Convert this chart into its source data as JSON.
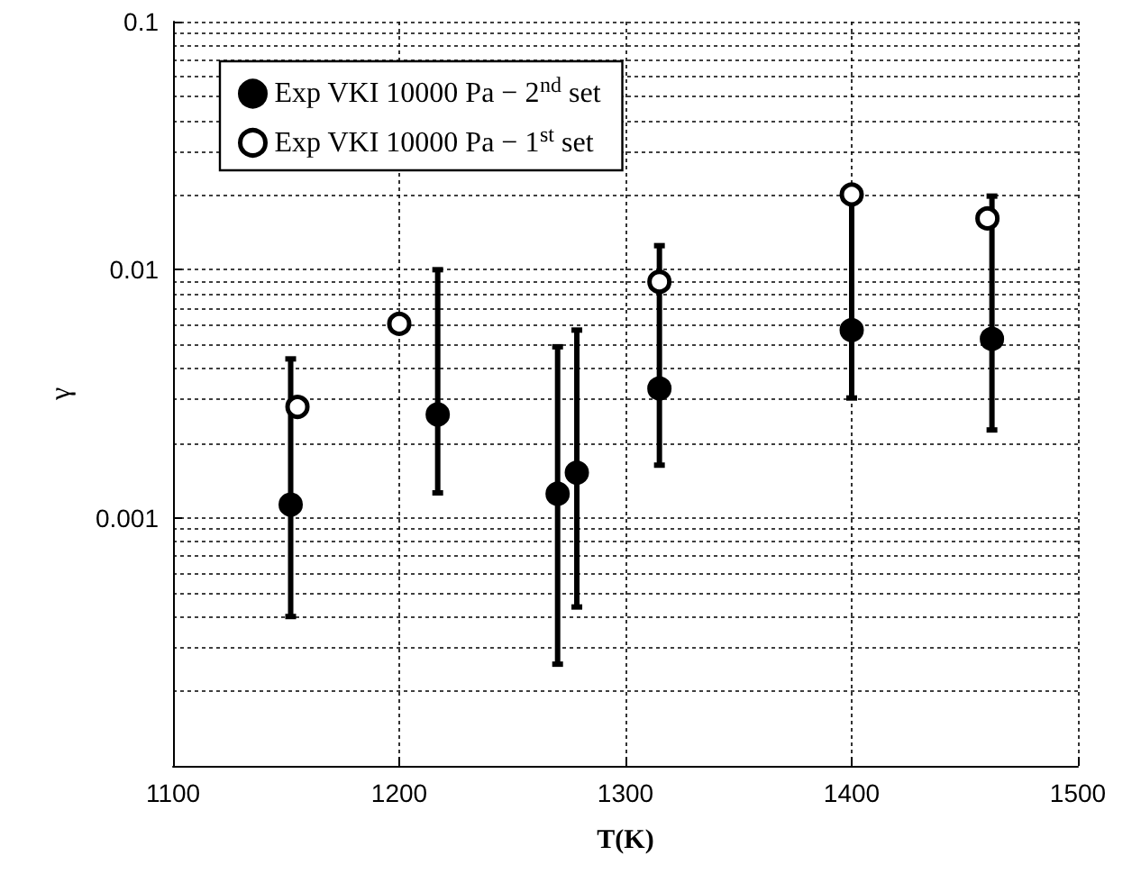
{
  "chart_data": {
    "type": "scatter",
    "xlabel": "T(K)",
    "ylabel": "γ",
    "log": "y",
    "grid": true,
    "legend": "top left",
    "marker": "circle",
    "xlim": [
      1100,
      1500
    ],
    "xticks": [
      1100,
      1200,
      1300,
      1400,
      1500
    ],
    "ylim": [
      0.0001,
      0.1
    ],
    "yticks": [
      {
        "value": 0.0001,
        "label": null
      },
      0.001,
      0.01,
      0.1
    ],
    "series": [
      {
        "name": "Exp VKI 10000 Pa − 2$^{nd}$ set",
        "color": "#000000",
        "x": [
          1152,
          1217,
          1270,
          1278.5,
          1315,
          1400,
          1462
        ],
        "values": [
          0.00113,
          0.00261,
          0.00125,
          0.00152,
          0.00332,
          0.00571,
          0.00526
        ],
        "errors": [
          [
            0.0004,
            0.00437
          ],
          [
            0.00126,
            0.01
          ],
          [
            0.000257,
            0.00489
          ],
          [
            0.000437,
            0.00571
          ],
          [
            0.00163,
            0.0125
          ],
          [
            0.00304,
            0.0201
          ],
          [
            0.00226,
            0.0198
          ]
        ]
      },
      {
        "name": "Exp VKI 10000 Pa − 1$^{st}$ set",
        "color": "#000000",
        "x": [
          1155,
          1200,
          1315,
          1400,
          1460
        ],
        "values": [
          0.0028,
          0.00605,
          0.00894,
          0.0201,
          0.0161
        ]
      }
    ]
  }
}
